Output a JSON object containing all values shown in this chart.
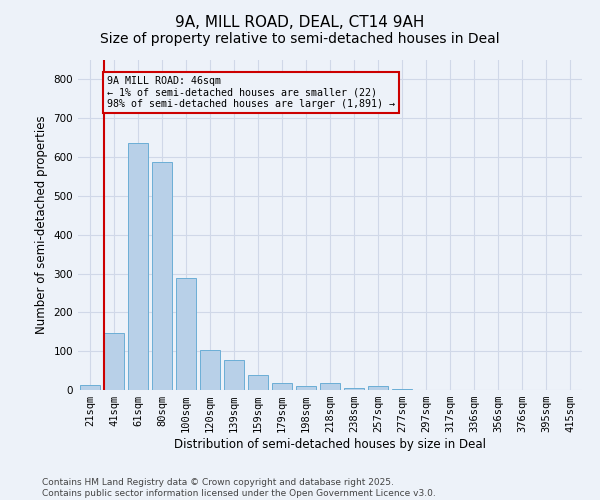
{
  "title": "9A, MILL ROAD, DEAL, CT14 9AH",
  "subtitle": "Size of property relative to semi-detached houses in Deal",
  "xlabel": "Distribution of semi-detached houses by size in Deal",
  "ylabel": "Number of semi-detached properties",
  "categories": [
    "21sqm",
    "41sqm",
    "61sqm",
    "80sqm",
    "100sqm",
    "120sqm",
    "139sqm",
    "159sqm",
    "179sqm",
    "198sqm",
    "218sqm",
    "238sqm",
    "257sqm",
    "277sqm",
    "297sqm",
    "317sqm",
    "336sqm",
    "356sqm",
    "376sqm",
    "395sqm",
    "415sqm"
  ],
  "values": [
    12,
    148,
    635,
    588,
    288,
    104,
    77,
    38,
    17,
    10,
    17,
    5,
    10,
    3,
    0,
    0,
    0,
    0,
    0,
    0,
    0
  ],
  "bar_color": "#b8d0e8",
  "bar_edge_color": "#6baed6",
  "vline_color": "#cc0000",
  "annotation_text": "9A MILL ROAD: 46sqm\n← 1% of semi-detached houses are smaller (22)\n98% of semi-detached houses are larger (1,891) →",
  "annotation_box_color": "#cc0000",
  "ylim": [
    0,
    850
  ],
  "yticks": [
    0,
    100,
    200,
    300,
    400,
    500,
    600,
    700,
    800
  ],
  "grid_color": "#d0d8e8",
  "background_color": "#edf2f9",
  "footer_text": "Contains HM Land Registry data © Crown copyright and database right 2025.\nContains public sector information licensed under the Open Government Licence v3.0.",
  "title_fontsize": 11,
  "subtitle_fontsize": 10,
  "axis_label_fontsize": 8.5,
  "tick_fontsize": 7.5,
  "footer_fontsize": 6.5
}
